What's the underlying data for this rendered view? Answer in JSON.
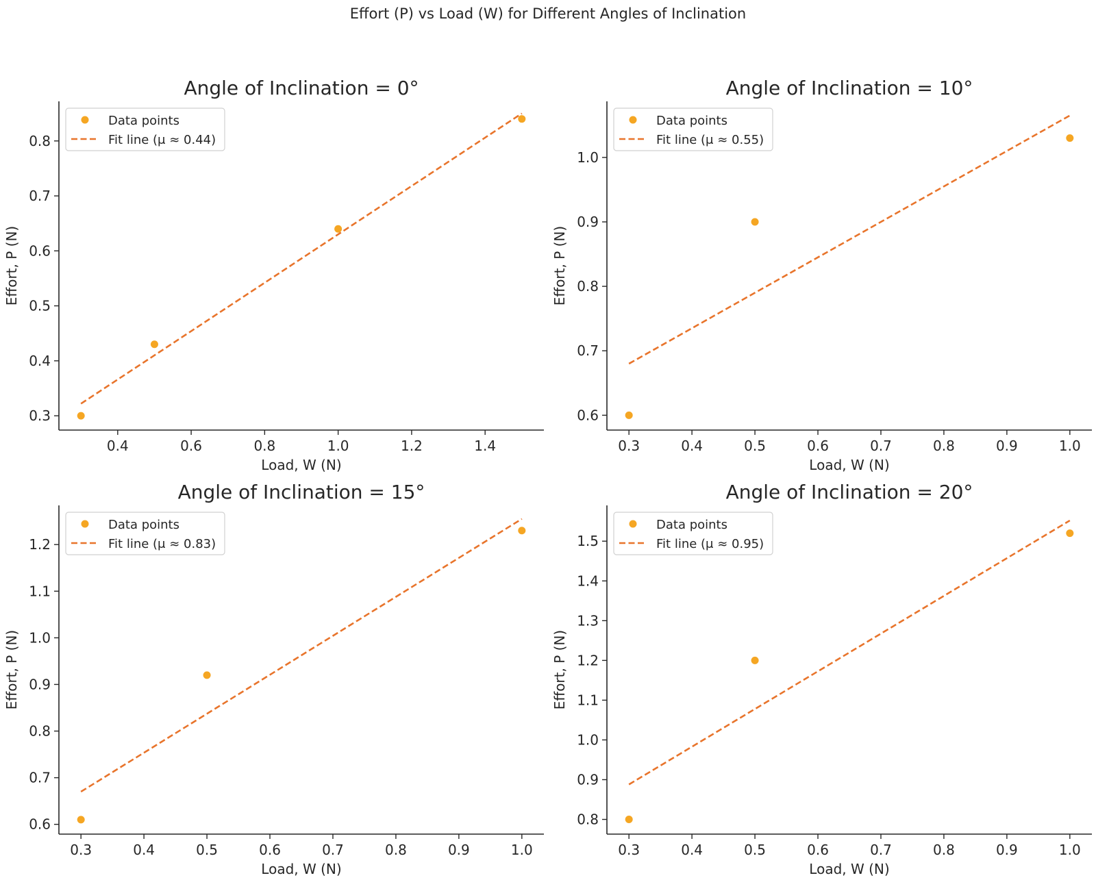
{
  "suptitle": "Effort (P) vs Load (W) for Different Angles of Inclination",
  "colors": {
    "points": "#f5a623",
    "fit": "#e8742b",
    "axis": "#262626",
    "legend_border": "#d0d0d0"
  },
  "chart_data": [
    {
      "type": "scatter",
      "title": "Angle of Inclination = 0°",
      "xlabel": "Load, W (N)",
      "ylabel": "Effort, P (N)",
      "xlim": [
        0.24,
        1.56
      ],
      "ylim": [
        0.274,
        0.872
      ],
      "xticks": [
        0.4,
        0.6,
        0.8,
        1.0,
        1.2,
        1.4
      ],
      "xtick_labels": [
        "0.4",
        "0.6",
        "0.8",
        "1.0",
        "1.2",
        "1.4"
      ],
      "yticks": [
        0.3,
        0.4,
        0.5,
        0.6,
        0.7,
        0.8
      ],
      "ytick_labels": [
        "0.3",
        "0.4",
        "0.5",
        "0.6",
        "0.7",
        "0.8"
      ],
      "series": [
        {
          "name": "Data points",
          "kind": "scatter",
          "x": [
            0.3,
            0.5,
            1.0,
            1.5
          ],
          "y": [
            0.3,
            0.43,
            0.64,
            0.84
          ]
        },
        {
          "name": "Fit line (μ ≈ 0.44)",
          "kind": "line",
          "x": [
            0.3,
            1.5
          ],
          "y": [
            0.322,
            0.85
          ]
        }
      ],
      "legend": "top-left",
      "grid": false
    },
    {
      "type": "scatter",
      "title": "Angle of Inclination = 10°",
      "xlabel": "Load, W (N)",
      "ylabel": "Effort, P (N)",
      "xlim": [
        0.265,
        1.035
      ],
      "ylim": [
        0.577,
        1.087
      ],
      "xticks": [
        0.3,
        0.4,
        0.5,
        0.6,
        0.7,
        0.8,
        0.9,
        1.0
      ],
      "xtick_labels": [
        "0.3",
        "0.4",
        "0.5",
        "0.6",
        "0.7",
        "0.8",
        "0.9",
        "1.0"
      ],
      "yticks": [
        0.6,
        0.7,
        0.8,
        0.9,
        1.0
      ],
      "ytick_labels": [
        "0.6",
        "0.7",
        "0.8",
        "0.9",
        "1.0"
      ],
      "series": [
        {
          "name": "Data points",
          "kind": "scatter",
          "x": [
            0.3,
            0.5,
            1.0
          ],
          "y": [
            0.6,
            0.9,
            1.03
          ]
        },
        {
          "name": "Fit line (μ ≈ 0.55)",
          "kind": "line",
          "x": [
            0.3,
            1.0
          ],
          "y": [
            0.68,
            1.065
          ]
        }
      ],
      "legend": "top-left",
      "grid": false
    },
    {
      "type": "scatter",
      "title": "Angle of Inclination = 15°",
      "xlabel": "Load, W (N)",
      "ylabel": "Effort, P (N)",
      "xlim": [
        0.265,
        1.035
      ],
      "ylim": [
        0.579,
        1.284
      ],
      "xticks": [
        0.3,
        0.4,
        0.5,
        0.6,
        0.7,
        0.8,
        0.9,
        1.0
      ],
      "xtick_labels": [
        "0.3",
        "0.4",
        "0.5",
        "0.6",
        "0.7",
        "0.8",
        "0.9",
        "1.0"
      ],
      "yticks": [
        0.6,
        0.7,
        0.8,
        0.9,
        1.0,
        1.1,
        1.2
      ],
      "ytick_labels": [
        "0.6",
        "0.7",
        "0.8",
        "0.9",
        "1.0",
        "1.1",
        "1.2"
      ],
      "series": [
        {
          "name": "Data points",
          "kind": "scatter",
          "x": [
            0.3,
            0.5,
            1.0
          ],
          "y": [
            0.61,
            0.92,
            1.23
          ]
        },
        {
          "name": "Fit line (μ ≈ 0.83)",
          "kind": "line",
          "x": [
            0.3,
            1.0
          ],
          "y": [
            0.67,
            1.255
          ]
        }
      ],
      "legend": "top-left",
      "grid": false
    },
    {
      "type": "scatter",
      "title": "Angle of Inclination = 20°",
      "xlabel": "Load, W (N)",
      "ylabel": "Effort, P (N)",
      "xlim": [
        0.265,
        1.035
      ],
      "ylim": [
        0.763,
        1.59
      ],
      "xticks": [
        0.3,
        0.4,
        0.5,
        0.6,
        0.7,
        0.8,
        0.9,
        1.0
      ],
      "xtick_labels": [
        "0.3",
        "0.4",
        "0.5",
        "0.6",
        "0.7",
        "0.8",
        "0.9",
        "1.0"
      ],
      "yticks": [
        0.8,
        0.9,
        1.0,
        1.1,
        1.2,
        1.3,
        1.4,
        1.5
      ],
      "ytick_labels": [
        "0.8",
        "0.9",
        "1.0",
        "1.1",
        "1.2",
        "1.3",
        "1.4",
        "1.5"
      ],
      "series": [
        {
          "name": "Data points",
          "kind": "scatter",
          "x": [
            0.3,
            0.5,
            1.0
          ],
          "y": [
            0.8,
            1.2,
            1.52
          ]
        },
        {
          "name": "Fit line (μ ≈ 0.95)",
          "kind": "line",
          "x": [
            0.3,
            1.0
          ],
          "y": [
            0.888,
            1.552
          ]
        }
      ],
      "legend": "top-left",
      "grid": false
    }
  ]
}
